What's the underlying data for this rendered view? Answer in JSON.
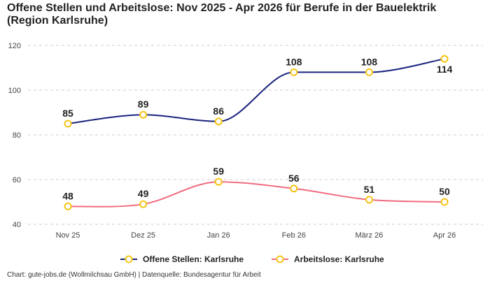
{
  "chart_data": {
    "type": "line",
    "title_line1": "Offene Stellen und Arbeitslose: Nov 2025 - Apr 2026 für Berufe in der Bauelektrik",
    "title_line2": "(Region Karlsruhe)",
    "categories": [
      "Nov 25",
      "Dez 25",
      "Jan 26",
      "Feb 26",
      "März 26",
      "Apr 26"
    ],
    "ylim": [
      40,
      120
    ],
    "yticks": [
      40,
      60,
      80,
      100,
      120
    ],
    "grid": true,
    "legend_position": "bottom",
    "marker_color": "#f5c518",
    "series": [
      {
        "name": "Offene Stellen: Karlsruhe",
        "color": "#1a237e",
        "values": [
          85,
          89,
          86,
          108,
          108,
          114
        ]
      },
      {
        "name": "Arbeitslose: Karlsruhe",
        "color": "#f06b80",
        "values": [
          48,
          49,
          59,
          56,
          51,
          50
        ]
      }
    ],
    "footer": "Chart: gute-jobs.de (Wollmilchsau GmbH) | Datenquelle: Bundesagentur für Arbeit"
  }
}
